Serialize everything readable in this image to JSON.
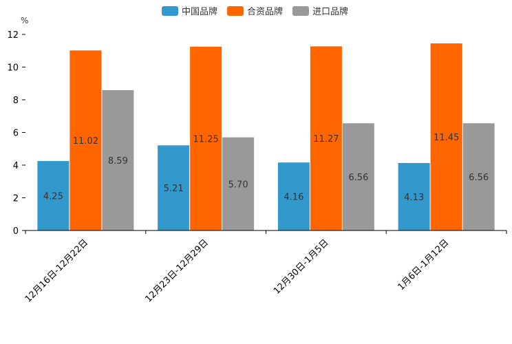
{
  "chart_data": {
    "type": "bar",
    "title": "",
    "unit_label": "%",
    "xlabel": "",
    "ylabel": "%",
    "ylim": [
      0,
      12
    ],
    "yticks": [
      0,
      2,
      4,
      6,
      8,
      10,
      12
    ],
    "grid": false,
    "legend_position": "top-center",
    "categories": [
      "12月16日-12月22日",
      "12月23日-12月29日",
      "12月30日-1月5日",
      "1月6日-1月12日"
    ],
    "series": [
      {
        "name": "中国品牌",
        "color": "#3399cc",
        "values": [
          4.25,
          5.21,
          4.16,
          4.13
        ],
        "labels": [
          "4.25",
          "5.21",
          "4.16",
          "4.13"
        ]
      },
      {
        "name": "合资品牌",
        "color": "#ff6600",
        "values": [
          11.02,
          11.25,
          11.27,
          11.45
        ],
        "labels": [
          "11.02",
          "11.25",
          "11.27",
          "11.45"
        ]
      },
      {
        "name": "进口品牌",
        "color": "#999999",
        "values": [
          8.59,
          5.7,
          6.56,
          6.56
        ],
        "labels": [
          "8.59",
          "5.70",
          "6.56",
          "6.56"
        ]
      }
    ]
  }
}
